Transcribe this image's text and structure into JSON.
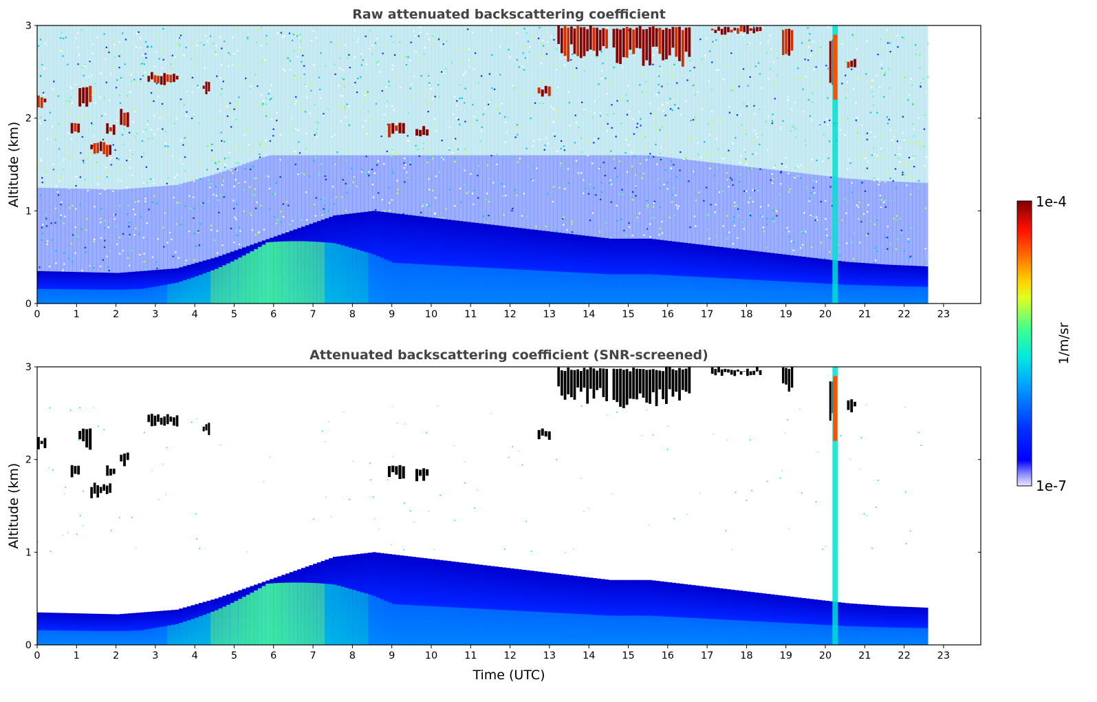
{
  "chart_data": [
    {
      "type": "heatmap",
      "title": "Raw attenuated backscattering coefficient",
      "xlabel": "",
      "ylabel": "Altitude (km)",
      "xlim": [
        0,
        24
      ],
      "ylim": [
        0,
        3
      ],
      "x_ticks": [
        "0",
        "1",
        "2",
        "3",
        "4",
        "5",
        "6",
        "7",
        "8",
        "9",
        "10",
        "11",
        "12",
        "13",
        "14",
        "15",
        "16",
        "17",
        "18",
        "19",
        "20",
        "21",
        "22",
        "23"
      ],
      "y_ticks": [
        "0",
        "1",
        "2",
        "3"
      ],
      "data_end_time": 22.6,
      "boundary_layer_top_km": [
        [
          0,
          0.35
        ],
        [
          2,
          0.33
        ],
        [
          3.5,
          0.38
        ],
        [
          4.5,
          0.5
        ],
        [
          5.5,
          0.65
        ],
        [
          6.5,
          0.8
        ],
        [
          7.5,
          0.95
        ],
        [
          8.5,
          1.0
        ],
        [
          9.5,
          0.95
        ],
        [
          10.5,
          0.9
        ],
        [
          11.5,
          0.85
        ],
        [
          12.5,
          0.8
        ],
        [
          13.5,
          0.75
        ],
        [
          14.5,
          0.7
        ],
        [
          15.5,
          0.7
        ],
        [
          16.5,
          0.65
        ],
        [
          17.5,
          0.6
        ],
        [
          18.5,
          0.55
        ],
        [
          19.5,
          0.5
        ],
        [
          20.5,
          0.45
        ],
        [
          21.5,
          0.42
        ],
        [
          22.6,
          0.4
        ]
      ],
      "clouds": [
        {
          "t0": 0.0,
          "t1": 0.25,
          "z0": 2.1,
          "z1": 2.25
        },
        {
          "t0": 0.85,
          "t1": 1.1,
          "z0": 1.8,
          "z1": 1.95
        },
        {
          "t0": 1.05,
          "t1": 1.4,
          "z0": 2.1,
          "z1": 2.35
        },
        {
          "t0": 1.35,
          "t1": 1.9,
          "z0": 1.58,
          "z1": 1.75
        },
        {
          "t0": 1.75,
          "t1": 2.0,
          "z0": 1.8,
          "z1": 1.95
        },
        {
          "t0": 2.1,
          "t1": 2.35,
          "z0": 1.9,
          "z1": 2.1
        },
        {
          "t0": 2.8,
          "t1": 3.6,
          "z0": 2.35,
          "z1": 2.5
        },
        {
          "t0": 4.2,
          "t1": 4.4,
          "z0": 2.25,
          "z1": 2.4
        },
        {
          "t0": 8.9,
          "t1": 9.35,
          "z0": 1.78,
          "z1": 1.95
        },
        {
          "t0": 9.6,
          "t1": 9.95,
          "z0": 1.75,
          "z1": 1.92
        },
        {
          "t0": 12.7,
          "t1": 13.05,
          "z0": 2.2,
          "z1": 2.35
        },
        {
          "t0": 13.2,
          "t1": 14.5,
          "z0": 2.6,
          "z1": 3.0
        },
        {
          "t0": 14.6,
          "t1": 16.6,
          "z0": 2.55,
          "z1": 3.0
        },
        {
          "t0": 17.1,
          "t1": 18.4,
          "z0": 2.9,
          "z1": 3.0
        },
        {
          "t0": 18.9,
          "t1": 19.2,
          "z0": 2.65,
          "z1": 3.0
        },
        {
          "t0": 20.1,
          "t1": 20.3,
          "z0": 2.2,
          "z1": 2.85
        },
        {
          "t0": 20.55,
          "t1": 20.8,
          "z0": 2.5,
          "z1": 2.65
        }
      ],
      "precip_column": {
        "t": 20.25,
        "z0": 0,
        "z1": 3.0
      }
    },
    {
      "type": "heatmap",
      "title": "Attenuated backscattering coefficient (SNR-screened)",
      "xlabel": "Time (UTC)",
      "ylabel": "Altitude (km)",
      "xlim": [
        0,
        24
      ],
      "ylim": [
        0,
        3
      ],
      "x_ticks": [
        "0",
        "1",
        "2",
        "3",
        "4",
        "5",
        "6",
        "7",
        "8",
        "9",
        "10",
        "11",
        "12",
        "13",
        "14",
        "15",
        "16",
        "17",
        "18",
        "19",
        "20",
        "21",
        "22",
        "23"
      ],
      "y_ticks": [
        "0",
        "1",
        "2",
        "3"
      ],
      "data_end_time": 22.6
    }
  ],
  "colorbar": {
    "label": "1/m/sr",
    "max_label": "1e-4",
    "min_label": "1e-7",
    "scale": "log",
    "colormap": [
      "#0000a0",
      "#0000ff",
      "#0080ff",
      "#00e0ff",
      "#40ffc0",
      "#c0ff40",
      "#ffe000",
      "#ff8000",
      "#ff2000",
      "#800000"
    ]
  }
}
